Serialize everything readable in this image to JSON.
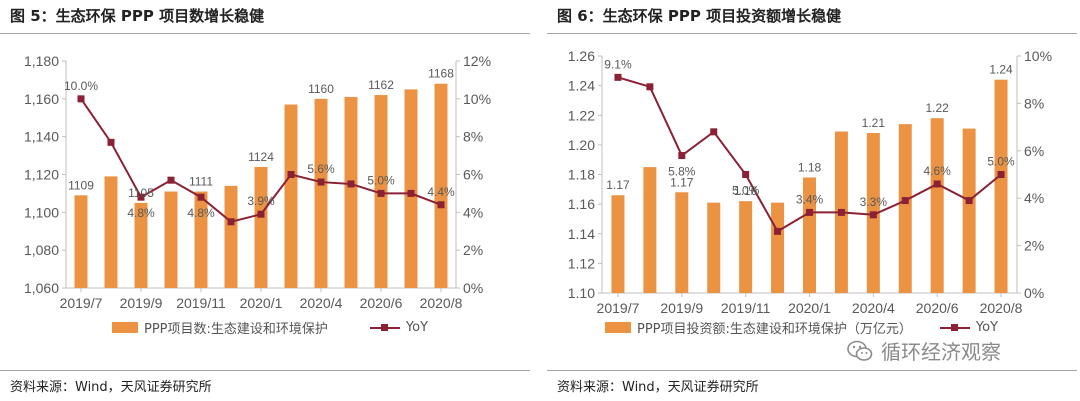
{
  "panels": [
    {
      "title": "图 5：生态环保 PPP 项目数增长稳健",
      "source": "资料来源：Wind，天风证券研究所",
      "legend": {
        "bar": "PPP项目数:生态建设和环境保护",
        "line": "YoY"
      }
    },
    {
      "title": "图 6：生态环保 PPP 项目投资额增长稳健",
      "source": "资料来源：Wind，天风证券研究所",
      "legend": {
        "bar": "PPP项目投资额:生态建设和环境保护（万亿元）",
        "line": "YoY"
      },
      "watermark": "循环经济观察"
    }
  ],
  "colors": {
    "bar": "#eb9343",
    "line": "#8b2134",
    "axis": "#bfbfbf",
    "text": "#595959"
  },
  "icons": {
    "watermark": "wechat-icon"
  },
  "chart_data": [
    {
      "type": "bar",
      "x_ticks": [
        "2019/7",
        "2019/9",
        "2019/11",
        "2020/1",
        "2020/4",
        "2020/6",
        "2020/8"
      ],
      "series": [
        {
          "name": "PPP项目数:生态建设和环境保护",
          "type": "bar",
          "axis": "left",
          "values": [
            1109,
            1119,
            1105,
            1111,
            1111,
            1114,
            1124,
            1157,
            1160,
            1161,
            1162,
            1165,
            1168
          ],
          "labels": [
            "1109",
            "",
            "1105",
            "",
            "1111",
            "",
            "1124",
            "",
            "1160",
            "",
            "1162",
            "",
            "1168"
          ]
        },
        {
          "name": "YoY",
          "type": "line",
          "axis": "right",
          "values": [
            10.0,
            7.7,
            4.8,
            5.7,
            4.8,
            3.5,
            3.9,
            6.0,
            5.6,
            5.5,
            5.0,
            5.0,
            4.4
          ],
          "labels": [
            "10.0%",
            "",
            "4.8%",
            "",
            "4.8%",
            "",
            "3.9%",
            "",
            "5.6%",
            "",
            "5.0%",
            "",
            "4.4%"
          ]
        }
      ],
      "y_left": {
        "min": 1060,
        "max": 1180,
        "ticks": [
          "1,060",
          "1,080",
          "1,100",
          "1,120",
          "1,140",
          "1,160",
          "1,180"
        ]
      },
      "y_right": {
        "min": 0,
        "max": 12,
        "ticks": [
          "0%",
          "2%",
          "4%",
          "6%",
          "8%",
          "10%",
          "12%"
        ]
      }
    },
    {
      "type": "bar",
      "x_ticks": [
        "2019/7",
        "2019/9",
        "2019/11",
        "2020/1",
        "2020/4",
        "2020/6",
        "2020/8"
      ],
      "series": [
        {
          "name": "PPP项目投资额:生态建设和环境保护（万亿元）",
          "type": "bar",
          "axis": "left",
          "values": [
            1.166,
            1.185,
            1.168,
            1.161,
            1.162,
            1.161,
            1.178,
            1.209,
            1.208,
            1.214,
            1.218,
            1.211,
            1.244
          ],
          "labels": [
            "1.17",
            "",
            "1.17",
            "",
            "1.16",
            "",
            "1.18",
            "",
            "1.21",
            "",
            "1.22",
            "",
            "1.24"
          ]
        },
        {
          "name": "YoY",
          "type": "line",
          "axis": "right",
          "values": [
            9.1,
            8.7,
            5.8,
            6.8,
            5.0,
            2.6,
            3.4,
            3.4,
            3.3,
            3.9,
            4.6,
            3.9,
            5.0
          ],
          "labels": [
            "9.1%",
            "",
            "5.8%",
            "",
            "5.0%",
            "",
            "3.4%",
            "",
            "3.3%",
            "",
            "4.6%",
            "",
            "5.0%"
          ]
        }
      ],
      "y_left": {
        "min": 1.1,
        "max": 1.26,
        "ticks": [
          "1.10",
          "1.12",
          "1.14",
          "1.16",
          "1.18",
          "1.20",
          "1.22",
          "1.24",
          "1.26"
        ]
      },
      "y_right": {
        "min": 0,
        "max": 10,
        "ticks": [
          "0%",
          "2%",
          "4%",
          "6%",
          "8%",
          "10%"
        ]
      }
    }
  ]
}
